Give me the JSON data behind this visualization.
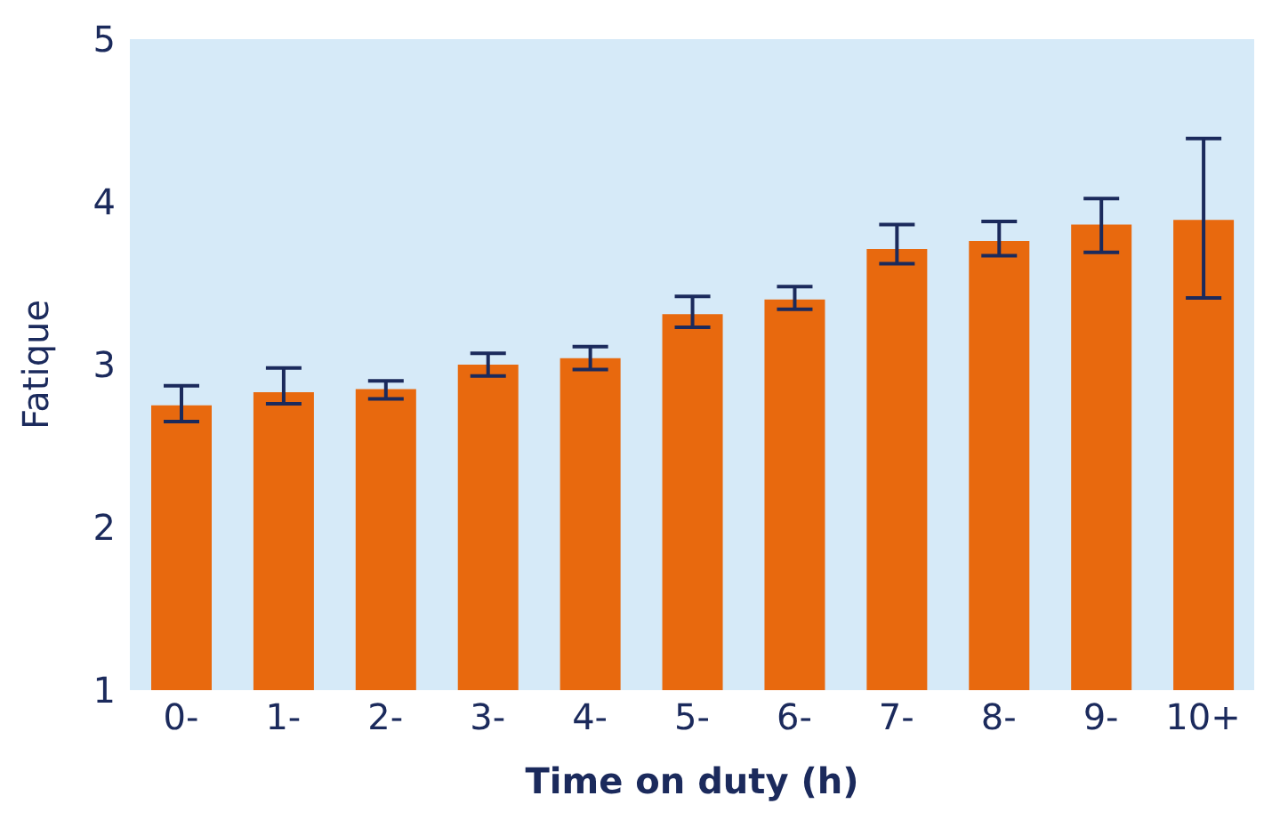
{
  "chart_data": {
    "type": "bar",
    "xlabel": "Time on duty (h)",
    "ylabel": "Fatique",
    "categories": [
      "0-",
      "1-",
      "2-",
      "3-",
      "4-",
      "5-",
      "6-",
      "7-",
      "8-",
      "9-",
      "10+"
    ],
    "values": [
      2.75,
      2.83,
      2.85,
      3.0,
      3.04,
      3.31,
      3.4,
      3.71,
      3.76,
      3.86,
      3.89
    ],
    "errors": [
      [
        2.65,
        2.87
      ],
      [
        2.76,
        2.98
      ],
      [
        2.79,
        2.9
      ],
      [
        2.93,
        3.07
      ],
      [
        2.97,
        3.11
      ],
      [
        3.23,
        3.42
      ],
      [
        3.34,
        3.48
      ],
      [
        3.62,
        3.86
      ],
      [
        3.67,
        3.88
      ],
      [
        3.69,
        4.02
      ],
      [
        3.41,
        4.39
      ]
    ],
    "color": "#e8690e",
    "ylim": [
      1,
      5
    ],
    "yticks": [
      1,
      2,
      3,
      4,
      5
    ],
    "grid": false,
    "legend": false
  }
}
